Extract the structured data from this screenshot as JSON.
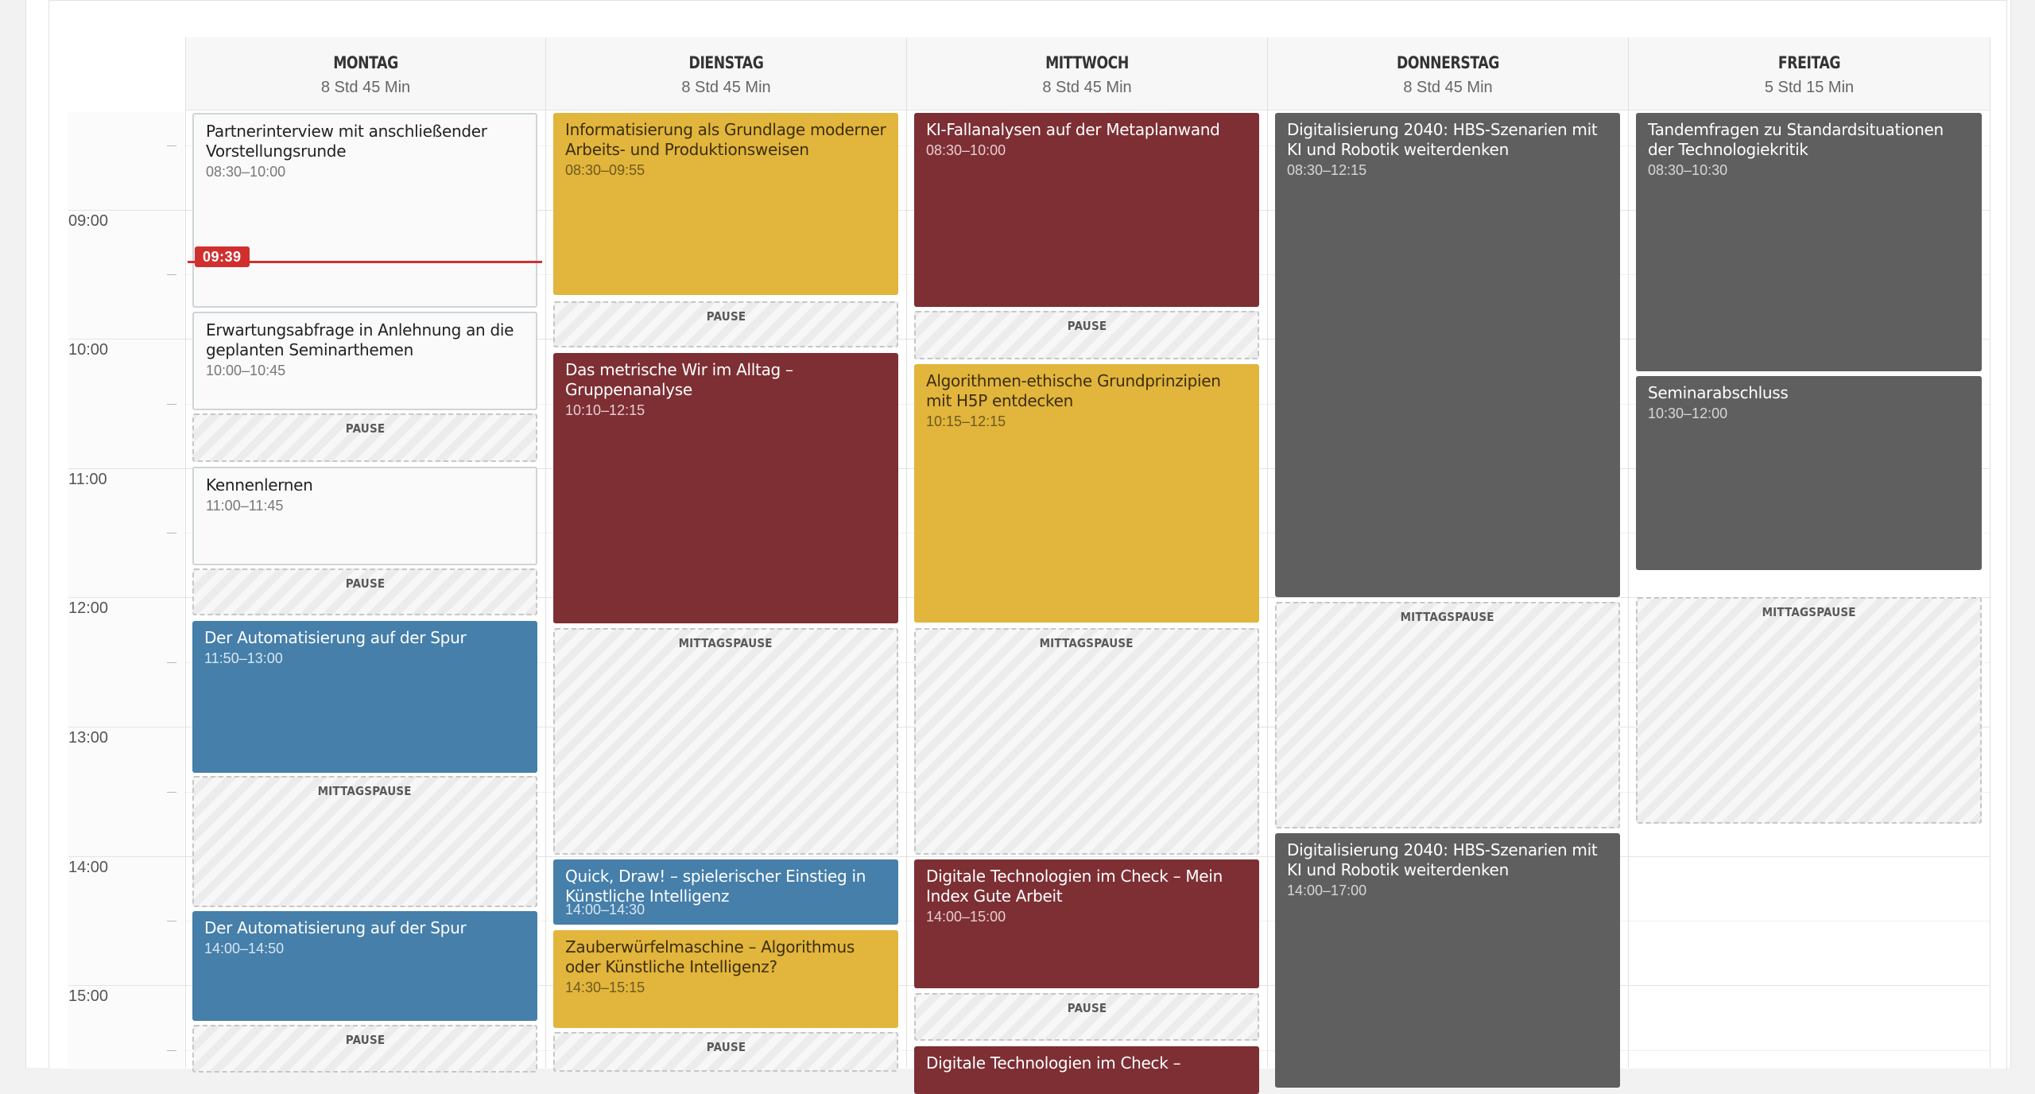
{
  "days": [
    {
      "name": "MONTAG",
      "total": "8 Std 45 Min"
    },
    {
      "name": "DIENSTAG",
      "total": "8 Std 45 Min"
    },
    {
      "name": "MITTWOCH",
      "total": "8 Std 45 Min"
    },
    {
      "name": "DONNERSTAG",
      "total": "8 Std 45 Min"
    },
    {
      "name": "FREITAG",
      "total": "5 Std 15 Min"
    }
  ],
  "time_labels": [
    "09:00",
    "10:00",
    "11:00",
    "12:00",
    "13:00",
    "14:00",
    "15:00"
  ],
  "current_time": "09:39",
  "pause_label": "PAUSE",
  "lunch_label": "MITTAGSPAUSE",
  "events": {
    "montag": [
      {
        "title": "Partnerinterview mit anschließender Vorstellungsrunde",
        "time": "08:30–10:00"
      },
      {
        "title": "Erwartungsabfrage in Anlehnung an die geplanten Seminarthemen",
        "time": "10:00–10:45"
      },
      {
        "title": "Kennenlernen",
        "time": "11:00–11:45"
      },
      {
        "title": "Der Automatisierung auf der Spur",
        "time": "11:50–13:00"
      },
      {
        "title": "Der Automatisierung auf der Spur",
        "time": "14:00–14:50"
      }
    ],
    "dienstag": [
      {
        "title": "Informatisierung als Grundlage moderner Arbeits- und Produktionsweisen",
        "time": "08:30–09:55"
      },
      {
        "title": "Das metrische Wir im Alltag – Gruppenanalyse",
        "time": "10:10–12:15"
      },
      {
        "title": "Quick, Draw! – spielerischer Einstieg in Künstliche Intelligenz",
        "time": "14:00–14:30"
      },
      {
        "title": "Zauberwürfelmaschine – Algorithmus oder Künstliche Intelligenz?",
        "time": "14:30–15:15"
      }
    ],
    "mittwoch": [
      {
        "title": "KI-Fallanalysen auf der Metaplanwand",
        "time": "08:30–10:00"
      },
      {
        "title": "Algorithmen-ethische Grundprinzipien mit H5P entdecken",
        "time": "10:15–12:15"
      },
      {
        "title": "Digitale Technologien im Check – Mein Index Gute Arbeit",
        "time": "14:00–15:00"
      },
      {
        "title": "Digitale Technologien im Check –"
      }
    ],
    "donnerstag": [
      {
        "title": "Digitalisierung 2040: HBS-Szenarien mit KI und Robotik weiterdenken",
        "time": "08:30–12:15"
      },
      {
        "title": "Digitalisierung 2040: HBS-Szenarien mit KI und Robotik weiterdenken",
        "time": "14:00–17:00"
      }
    ],
    "freitag": [
      {
        "title": "Tandemfragen zu Standardsituationen der Technologiekritik",
        "time": "08:30–10:30"
      },
      {
        "title": "Seminarabschluss",
        "time": "10:30–12:00"
      }
    ]
  },
  "colors": {
    "yellow": "#e2b53c",
    "red": "#7d2f34",
    "blue": "#457faa",
    "grey": "#5f5f5f",
    "now": "#d12f2f"
  }
}
